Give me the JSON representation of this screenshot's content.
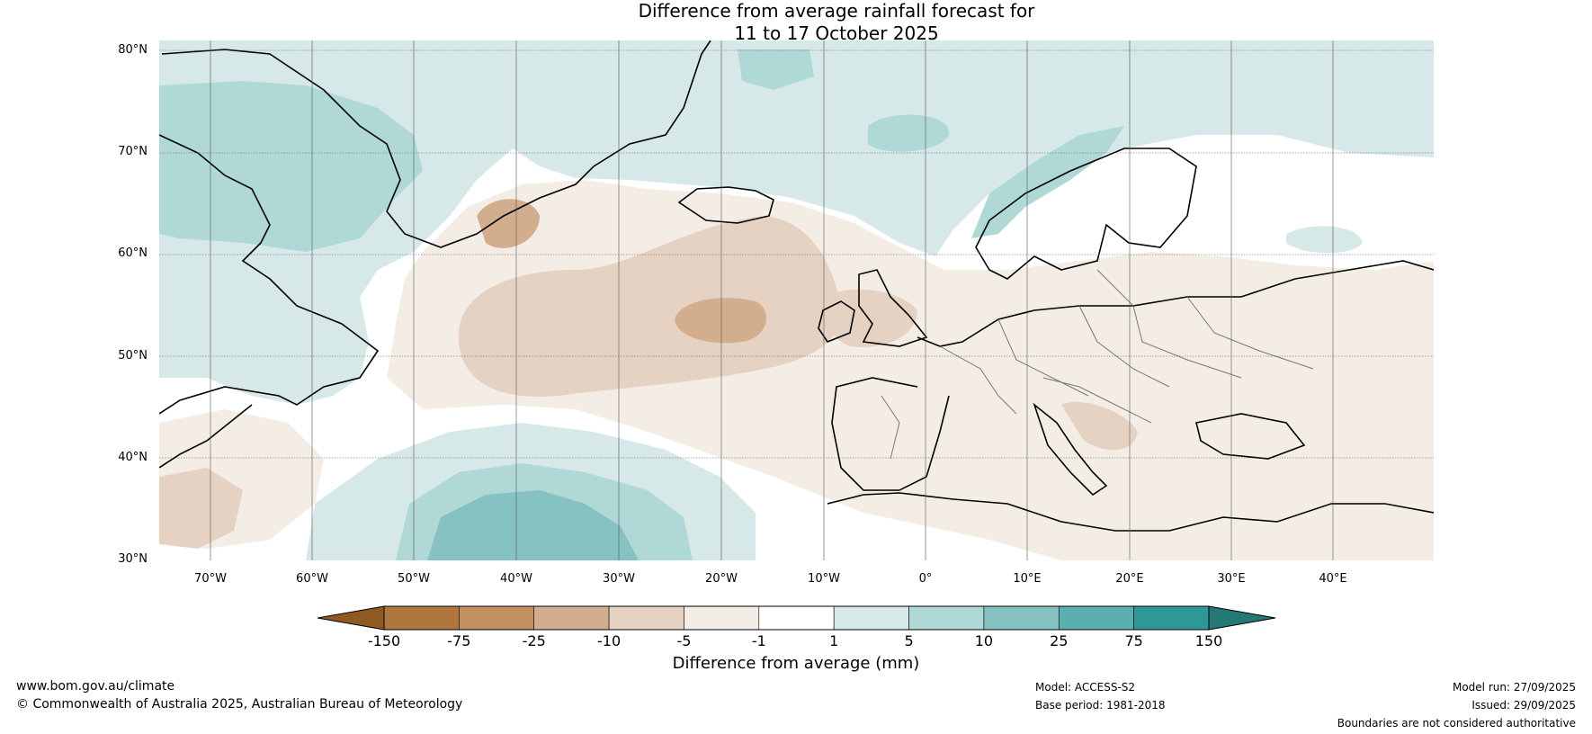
{
  "header": {
    "title_line1": "Difference from average rainfall forecast for",
    "title_line2": "11 to 17 October 2025"
  },
  "map": {
    "lat_labels": [
      "80°N",
      "70°N",
      "60°N",
      "50°N",
      "40°N",
      "30°N"
    ],
    "lon_labels": [
      "70°W",
      "60°W",
      "50°W",
      "40°W",
      "30°W",
      "20°W",
      "10°W",
      "0°",
      "10°E",
      "20°E",
      "30°E",
      "40°E"
    ]
  },
  "colorbar": {
    "ticks": [
      "-150",
      "-75",
      "-25",
      "-10",
      "-5",
      "-1",
      "1",
      "5",
      "10",
      "25",
      "75",
      "150"
    ],
    "colors": [
      "#8f5a22",
      "#b07640",
      "#c0915f",
      "#d2ae8e",
      "#e6d2c2",
      "#f4ede6",
      "#ffffff",
      "#d6e9e8",
      "#b0d8d7",
      "#85c2c1",
      "#5ab0af",
      "#2f9896",
      "#247876"
    ],
    "title": "Difference from average (mm)"
  },
  "footer": {
    "url": "www.bom.gov.au/climate",
    "copyright": "© Commonwealth of Australia 2025, Australian Bureau of Meteorology",
    "model": "Model: ACCESS-S2",
    "base_period": "Base period: 1981-2018",
    "model_run": "Model run: 27/09/2025",
    "issued": "Issued: 29/09/2025",
    "disclaimer": "Boundaries are not considered authoritative"
  }
}
